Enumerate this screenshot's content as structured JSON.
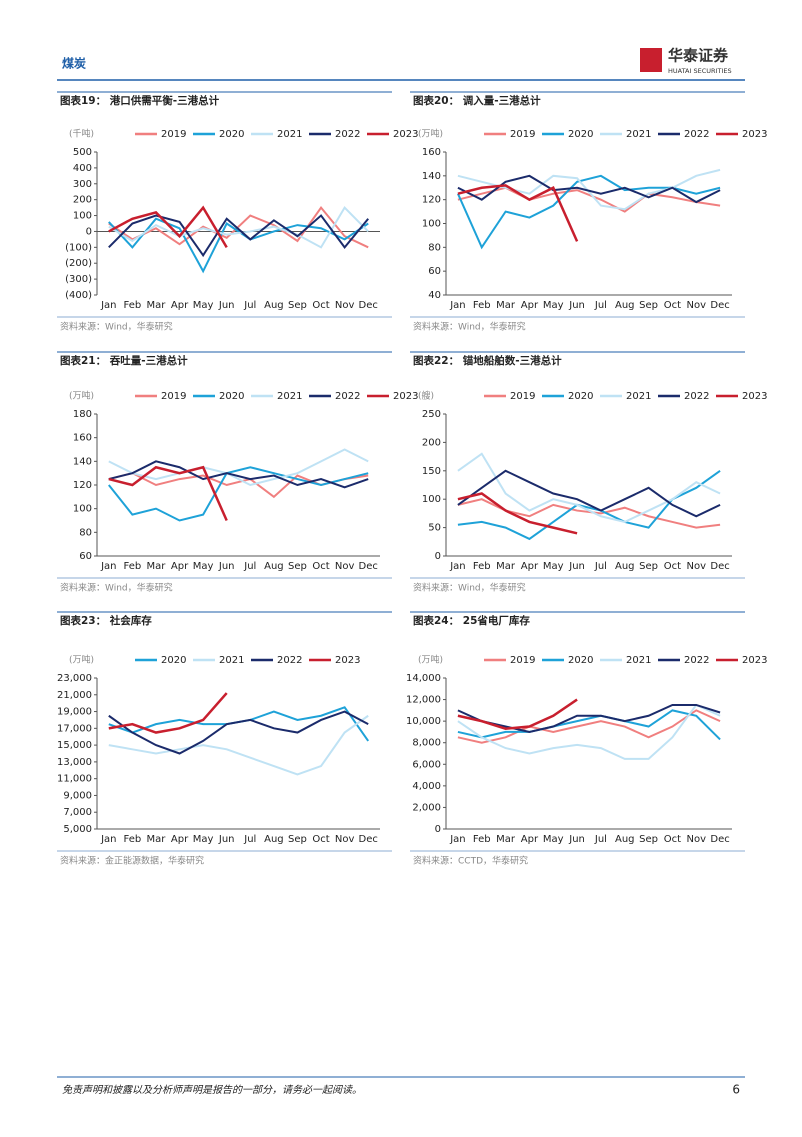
{
  "header": {
    "section": "煤炭",
    "logo_cn": "华泰证券",
    "logo_en": "HUATAI SECURITIES"
  },
  "chart_data": [
    {
      "type": "line",
      "title": "图表19：  港口供需平衡-三港总计",
      "unit": "(千吨)",
      "source": "资料来源：Wind，华泰研究",
      "categories": [
        "Jan",
        "Feb",
        "Mar",
        "Apr",
        "May",
        "Jun",
        "Jul",
        "Aug",
        "Sep",
        "Oct",
        "Nov",
        "Dec"
      ],
      "ylim": [
        -400,
        500
      ],
      "yticks": [
        {
          "value": -400,
          "label": "(400)"
        },
        {
          "value": -300,
          "label": "(300)"
        },
        {
          "value": -200,
          "label": "(200)"
        },
        {
          "value": -100,
          "label": "(100)"
        },
        0,
        100,
        200,
        300,
        400,
        500
      ],
      "series": [
        {
          "name": "2019",
          "color": "#f07f7f",
          "values": [
            50,
            -50,
            20,
            -80,
            30,
            -40,
            100,
            40,
            -60,
            150,
            -30,
            -100
          ]
        },
        {
          "name": "2020",
          "color": "#1ea2d8",
          "values": [
            60,
            -100,
            80,
            20,
            -250,
            50,
            -50,
            0,
            40,
            20,
            -50,
            50
          ]
        },
        {
          "name": "2021",
          "color": "#bfe2f4",
          "values": [
            30,
            -60,
            40,
            -30,
            20,
            -20,
            0,
            30,
            -20,
            -100,
            150,
            0
          ]
        },
        {
          "name": "2022",
          "color": "#1b2b6b",
          "values": [
            -100,
            50,
            100,
            60,
            -150,
            80,
            -50,
            70,
            -30,
            100,
            -100,
            80
          ]
        },
        {
          "name": "2023",
          "color": "#c81f2e",
          "values": [
            0,
            80,
            120,
            -30,
            150,
            -100,
            null,
            null,
            null,
            null,
            null,
            null
          ]
        }
      ]
    },
    {
      "type": "line",
      "title": "图表20：  调入量-三港总计",
      "unit": "(万吨)",
      "source": "资料来源：Wind，华泰研究",
      "categories": [
        "Jan",
        "Feb",
        "Mar",
        "Apr",
        "May",
        "Jun",
        "Jul",
        "Aug",
        "Sep",
        "Oct",
        "Nov",
        "Dec"
      ],
      "ylim": [
        40,
        160
      ],
      "yticks": [
        40,
        60,
        80,
        100,
        120,
        140,
        160
      ],
      "series": [
        {
          "name": "2019",
          "color": "#f07f7f",
          "values": [
            120,
            125,
            130,
            120,
            125,
            128,
            120,
            110,
            125,
            122,
            118,
            115
          ]
        },
        {
          "name": "2020",
          "color": "#1ea2d8",
          "values": [
            125,
            80,
            110,
            105,
            115,
            135,
            140,
            128,
            130,
            130,
            125,
            130
          ]
        },
        {
          "name": "2021",
          "color": "#bfe2f4",
          "values": [
            140,
            135,
            130,
            125,
            140,
            138,
            115,
            112,
            125,
            130,
            140,
            145
          ]
        },
        {
          "name": "2022",
          "color": "#1b2b6b",
          "values": [
            130,
            120,
            135,
            140,
            128,
            130,
            125,
            130,
            122,
            130,
            118,
            128
          ]
        },
        {
          "name": "2023",
          "color": "#c81f2e",
          "values": [
            125,
            130,
            132,
            120,
            130,
            85,
            null,
            null,
            null,
            null,
            null,
            null
          ]
        }
      ]
    },
    {
      "type": "line",
      "title": "图表21：  吞吐量-三港总计",
      "unit": "(万吨)",
      "source": "资料来源：Wind，华泰研究",
      "categories": [
        "Jan",
        "Feb",
        "Mar",
        "Apr",
        "May",
        "Jun",
        "Jul",
        "Aug",
        "Sep",
        "Oct",
        "Nov",
        "Dec"
      ],
      "ylim": [
        60,
        180
      ],
      "yticks": [
        60,
        80,
        100,
        120,
        140,
        160,
        180
      ],
      "series": [
        {
          "name": "2019",
          "color": "#f07f7f",
          "values": [
            125,
            130,
            120,
            125,
            128,
            120,
            125,
            110,
            128,
            120,
            125,
            128
          ]
        },
        {
          "name": "2020",
          "color": "#1ea2d8",
          "values": [
            120,
            95,
            100,
            90,
            95,
            130,
            135,
            130,
            125,
            120,
            125,
            130
          ]
        },
        {
          "name": "2021",
          "color": "#bfe2f4",
          "values": [
            140,
            130,
            125,
            130,
            135,
            130,
            120,
            125,
            130,
            140,
            150,
            140
          ]
        },
        {
          "name": "2022",
          "color": "#1b2b6b",
          "values": [
            125,
            130,
            140,
            135,
            125,
            130,
            125,
            128,
            120,
            125,
            118,
            125
          ]
        },
        {
          "name": "2023",
          "color": "#c81f2e",
          "values": [
            125,
            120,
            135,
            130,
            135,
            90,
            null,
            null,
            null,
            null,
            null,
            null
          ]
        }
      ]
    },
    {
      "type": "line",
      "title": "图表22：  锚地船舶数-三港总计",
      "unit": "(艘)",
      "source": "资料来源：Wind，华泰研究",
      "categories": [
        "Jan",
        "Feb",
        "Mar",
        "Apr",
        "May",
        "Jun",
        "Jul",
        "Aug",
        "Sep",
        "Oct",
        "Nov",
        "Dec"
      ],
      "ylim": [
        0,
        250
      ],
      "yticks": [
        0,
        50,
        100,
        150,
        200,
        250
      ],
      "series": [
        {
          "name": "2019",
          "color": "#f07f7f",
          "values": [
            90,
            100,
            80,
            70,
            90,
            80,
            75,
            85,
            70,
            60,
            50,
            55
          ]
        },
        {
          "name": "2020",
          "color": "#1ea2d8",
          "values": [
            55,
            60,
            50,
            30,
            60,
            90,
            80,
            60,
            50,
            100,
            120,
            150
          ]
        },
        {
          "name": "2021",
          "color": "#bfe2f4",
          "values": [
            150,
            180,
            110,
            80,
            100,
            90,
            70,
            60,
            80,
            100,
            130,
            110
          ]
        },
        {
          "name": "2022",
          "color": "#1b2b6b",
          "values": [
            90,
            120,
            150,
            130,
            110,
            100,
            80,
            100,
            120,
            90,
            70,
            90
          ]
        },
        {
          "name": "2023",
          "color": "#c81f2e",
          "values": [
            100,
            110,
            80,
            60,
            50,
            40,
            null,
            null,
            null,
            null,
            null,
            null
          ]
        }
      ]
    },
    {
      "type": "line",
      "title": "图表23：  社会库存",
      "unit": "(万吨)",
      "source": "资料来源：金正能源数据，华泰研究",
      "categories": [
        "Jan",
        "Feb",
        "Mar",
        "Apr",
        "May",
        "Jun",
        "Jul",
        "Aug",
        "Sep",
        "Oct",
        "Nov",
        "Dec"
      ],
      "ylim": [
        5000,
        23000
      ],
      "yticks": [
        {
          "value": 5000,
          "label": "5,000"
        },
        {
          "value": 7000,
          "label": "7,000"
        },
        {
          "value": 9000,
          "label": "9,000"
        },
        {
          "value": 11000,
          "label": "11,000"
        },
        {
          "value": 13000,
          "label": "13,000"
        },
        {
          "value": 15000,
          "label": "15,000"
        },
        {
          "value": 17000,
          "label": "17,000"
        },
        {
          "value": 19000,
          "label": "19,000"
        },
        {
          "value": 21000,
          "label": "21,000"
        },
        {
          "value": 23000,
          "label": "23,000"
        }
      ],
      "series": [
        {
          "name": "2020",
          "color": "#1ea2d8",
          "values": [
            17500,
            16500,
            17500,
            18000,
            17500,
            17500,
            18000,
            19000,
            18000,
            18500,
            19500,
            15500
          ]
        },
        {
          "name": "2021",
          "color": "#bfe2f4",
          "values": [
            15000,
            14500,
            14000,
            14500,
            15000,
            14500,
            13500,
            12500,
            11500,
            12500,
            16500,
            18500
          ]
        },
        {
          "name": "2022",
          "color": "#1b2b6b",
          "values": [
            18500,
            16500,
            15000,
            14000,
            15500,
            17500,
            18000,
            17000,
            16500,
            18000,
            19000,
            17500
          ]
        },
        {
          "name": "2023",
          "color": "#c81f2e",
          "values": [
            17000,
            17500,
            16500,
            17000,
            18000,
            21200,
            null,
            null,
            null,
            null,
            null,
            null
          ]
        }
      ]
    },
    {
      "type": "line",
      "title": "图表24：  25省电厂库存",
      "unit": "(万吨)",
      "source": "资料来源：CCTD，华泰研究",
      "categories": [
        "Jan",
        "Feb",
        "Mar",
        "Apr",
        "May",
        "Jun",
        "Jul",
        "Aug",
        "Sep",
        "Oct",
        "Nov",
        "Dec"
      ],
      "ylim": [
        0,
        14000
      ],
      "yticks": [
        0,
        {
          "value": 2000,
          "label": "2,000"
        },
        {
          "value": 4000,
          "label": "4,000"
        },
        {
          "value": 6000,
          "label": "6,000"
        },
        {
          "value": 8000,
          "label": "8,000"
        },
        {
          "value": 10000,
          "label": "10,000"
        },
        {
          "value": 12000,
          "label": "12,000"
        },
        {
          "value": 14000,
          "label": "14,000"
        }
      ],
      "series": [
        {
          "name": "2019",
          "color": "#f07f7f",
          "values": [
            8500,
            8000,
            8500,
            9500,
            9000,
            9500,
            10000,
            9500,
            8500,
            9500,
            11000,
            10000
          ]
        },
        {
          "name": "2020",
          "color": "#1ea2d8",
          "values": [
            9000,
            8500,
            9000,
            9000,
            9500,
            10000,
            10500,
            10000,
            9500,
            11000,
            10500,
            8300
          ]
        },
        {
          "name": "2021",
          "color": "#bfe2f4",
          "values": [
            10000,
            8500,
            7500,
            7000,
            7500,
            7800,
            7500,
            6500,
            6500,
            8500,
            11500,
            10500
          ]
        },
        {
          "name": "2022",
          "color": "#1b2b6b",
          "values": [
            11000,
            10000,
            9500,
            9000,
            9500,
            10500,
            10500,
            10000,
            10500,
            11500,
            11500,
            10800
          ]
        },
        {
          "name": "2023",
          "color": "#c81f2e",
          "values": [
            10500,
            10000,
            9300,
            9500,
            10500,
            12000,
            null,
            null,
            null,
            null,
            null,
            null
          ]
        }
      ]
    }
  ],
  "footer": {
    "disclaimer": "免责声明和披露以及分析师声明是报告的一部分，请务必一起阅读。",
    "page": "6"
  }
}
